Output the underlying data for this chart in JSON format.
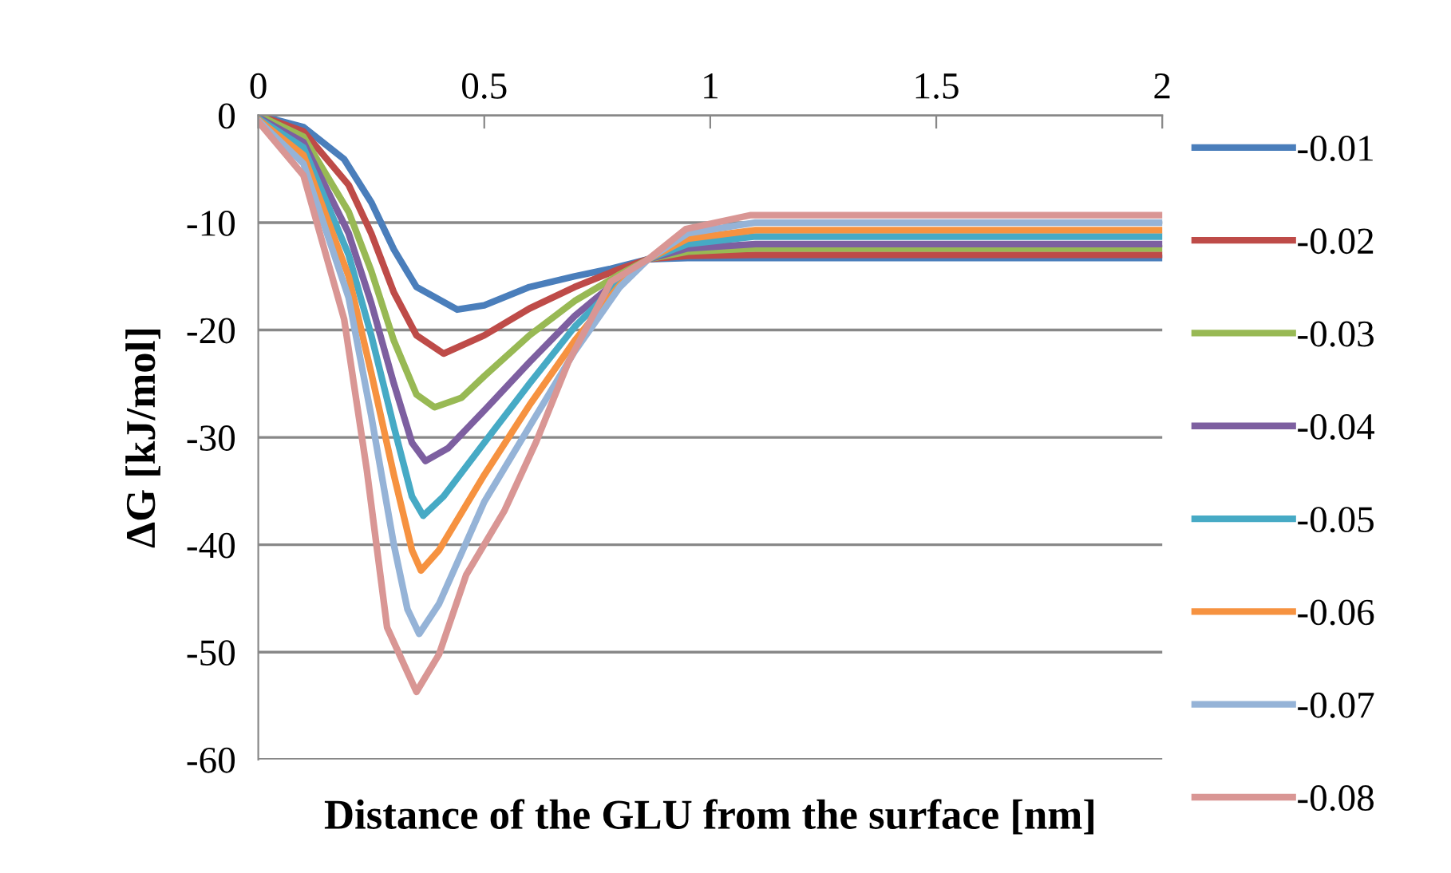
{
  "chart_data": {
    "type": "line",
    "xlabel": "Distance of the GLU from the surface [nm]",
    "ylabel": "ΔG [kJ/mol]",
    "xlim": [
      0,
      2
    ],
    "xticks": [
      0,
      0.5,
      1,
      1.5,
      2
    ],
    "ylim": [
      -60,
      0
    ],
    "yticks": [
      -60,
      -50,
      -40,
      -30,
      -20,
      -10,
      0
    ],
    "grid": "y",
    "legend": "right",
    "marker": "none",
    "line_style": "solid",
    "series": [
      {
        "name": "-0.01",
        "color": "#4a7ebb",
        "x": [
          0,
          0.1,
          0.19,
          0.25,
          0.3,
          0.35,
          0.44,
          0.5,
          0.6,
          0.7,
          0.78,
          0.863,
          0.95,
          2
        ],
        "values": [
          0,
          -1.1,
          -4.1,
          -8.1,
          -12.5,
          -16,
          -18.1,
          -17.7,
          -16,
          -15,
          -14.3,
          -13.4,
          -13.3,
          -13.3
        ]
      },
      {
        "name": "-0.02",
        "color": "#be4b48",
        "x": [
          0,
          0.1,
          0.2,
          0.25,
          0.3,
          0.35,
          0.41,
          0.5,
          0.6,
          0.7,
          0.8,
          0.863,
          0.95,
          1.1,
          2
        ],
        "values": [
          0,
          -1.5,
          -6.5,
          -11,
          -16.5,
          -20.5,
          -22.2,
          -20.5,
          -18,
          -16,
          -14.3,
          -13.4,
          -13.1,
          -13,
          -13
        ]
      },
      {
        "name": "-0.03",
        "color": "#98b954",
        "x": [
          0,
          0.1,
          0.2,
          0.25,
          0.3,
          0.35,
          0.39,
          0.45,
          0.5,
          0.6,
          0.7,
          0.8,
          0.863,
          0.95,
          1.1,
          2
        ],
        "values": [
          0,
          -2,
          -9,
          -14.5,
          -21,
          -26,
          -27.2,
          -26.3,
          -24.3,
          -20.5,
          -17.3,
          -14.8,
          -13.4,
          -12.7,
          -12.4,
          -12.4
        ]
      },
      {
        "name": "-0.04",
        "color": "#7d5fa0",
        "x": [
          0,
          0.1,
          0.2,
          0.25,
          0.3,
          0.34,
          0.37,
          0.42,
          0.5,
          0.6,
          0.7,
          0.8,
          0.863,
          0.95,
          1.1,
          2
        ],
        "values": [
          -0.2,
          -2.5,
          -11,
          -17.5,
          -25,
          -30.5,
          -32.2,
          -31,
          -27.5,
          -23,
          -18.7,
          -15.2,
          -13.4,
          -12.4,
          -12,
          -12
        ]
      },
      {
        "name": "-0.05",
        "color": "#46aac5",
        "x": [
          0,
          0.1,
          0.2,
          0.25,
          0.3,
          0.34,
          0.365,
          0.41,
          0.5,
          0.6,
          0.7,
          0.8,
          0.863,
          0.95,
          1.1,
          2
        ],
        "values": [
          -0.3,
          -3,
          -13,
          -20.5,
          -29,
          -35.5,
          -37.3,
          -35.5,
          -30.5,
          -25,
          -19.7,
          -15.5,
          -13.4,
          -12,
          -11.3,
          -11.3
        ]
      },
      {
        "name": "-0.06",
        "color": "#f69240",
        "x": [
          0,
          0.1,
          0.2,
          0.25,
          0.3,
          0.34,
          0.36,
          0.4,
          0.5,
          0.6,
          0.7,
          0.8,
          0.863,
          0.95,
          1.1,
          2
        ],
        "values": [
          -0.4,
          -3.7,
          -15,
          -24,
          -33.5,
          -40.5,
          -42.4,
          -40.5,
          -33.5,
          -27,
          -21,
          -15.8,
          -13.4,
          -11.5,
          -10.7,
          -10.7
        ]
      },
      {
        "name": "-0.07",
        "color": "#95b3d7",
        "x": [
          0,
          0.1,
          0.2,
          0.25,
          0.3,
          0.33,
          0.356,
          0.4,
          0.5,
          0.6,
          0.7,
          0.8,
          0.863,
          0.95,
          1.1,
          2
        ],
        "values": [
          -0.5,
          -4.5,
          -17,
          -28,
          -40,
          -46,
          -48.3,
          -45.5,
          -36,
          -29,
          -22,
          -16,
          -13.4,
          -11,
          -10,
          -10
        ]
      },
      {
        "name": "-0.08",
        "color": "#d99694",
        "x": [
          0,
          0.1,
          0.19,
          0.24,
          0.285,
          0.35,
          0.4,
          0.46,
          0.545,
          0.615,
          0.686,
          0.78,
          0.863,
          0.946,
          1.09,
          2
        ],
        "values": [
          -0.6,
          -5.6,
          -19,
          -33,
          -47.7,
          -53.7,
          -50.2,
          -42.8,
          -36.8,
          -30.4,
          -23,
          -15.5,
          -13.4,
          -10.6,
          -9.3,
          -9.3
        ]
      }
    ]
  }
}
